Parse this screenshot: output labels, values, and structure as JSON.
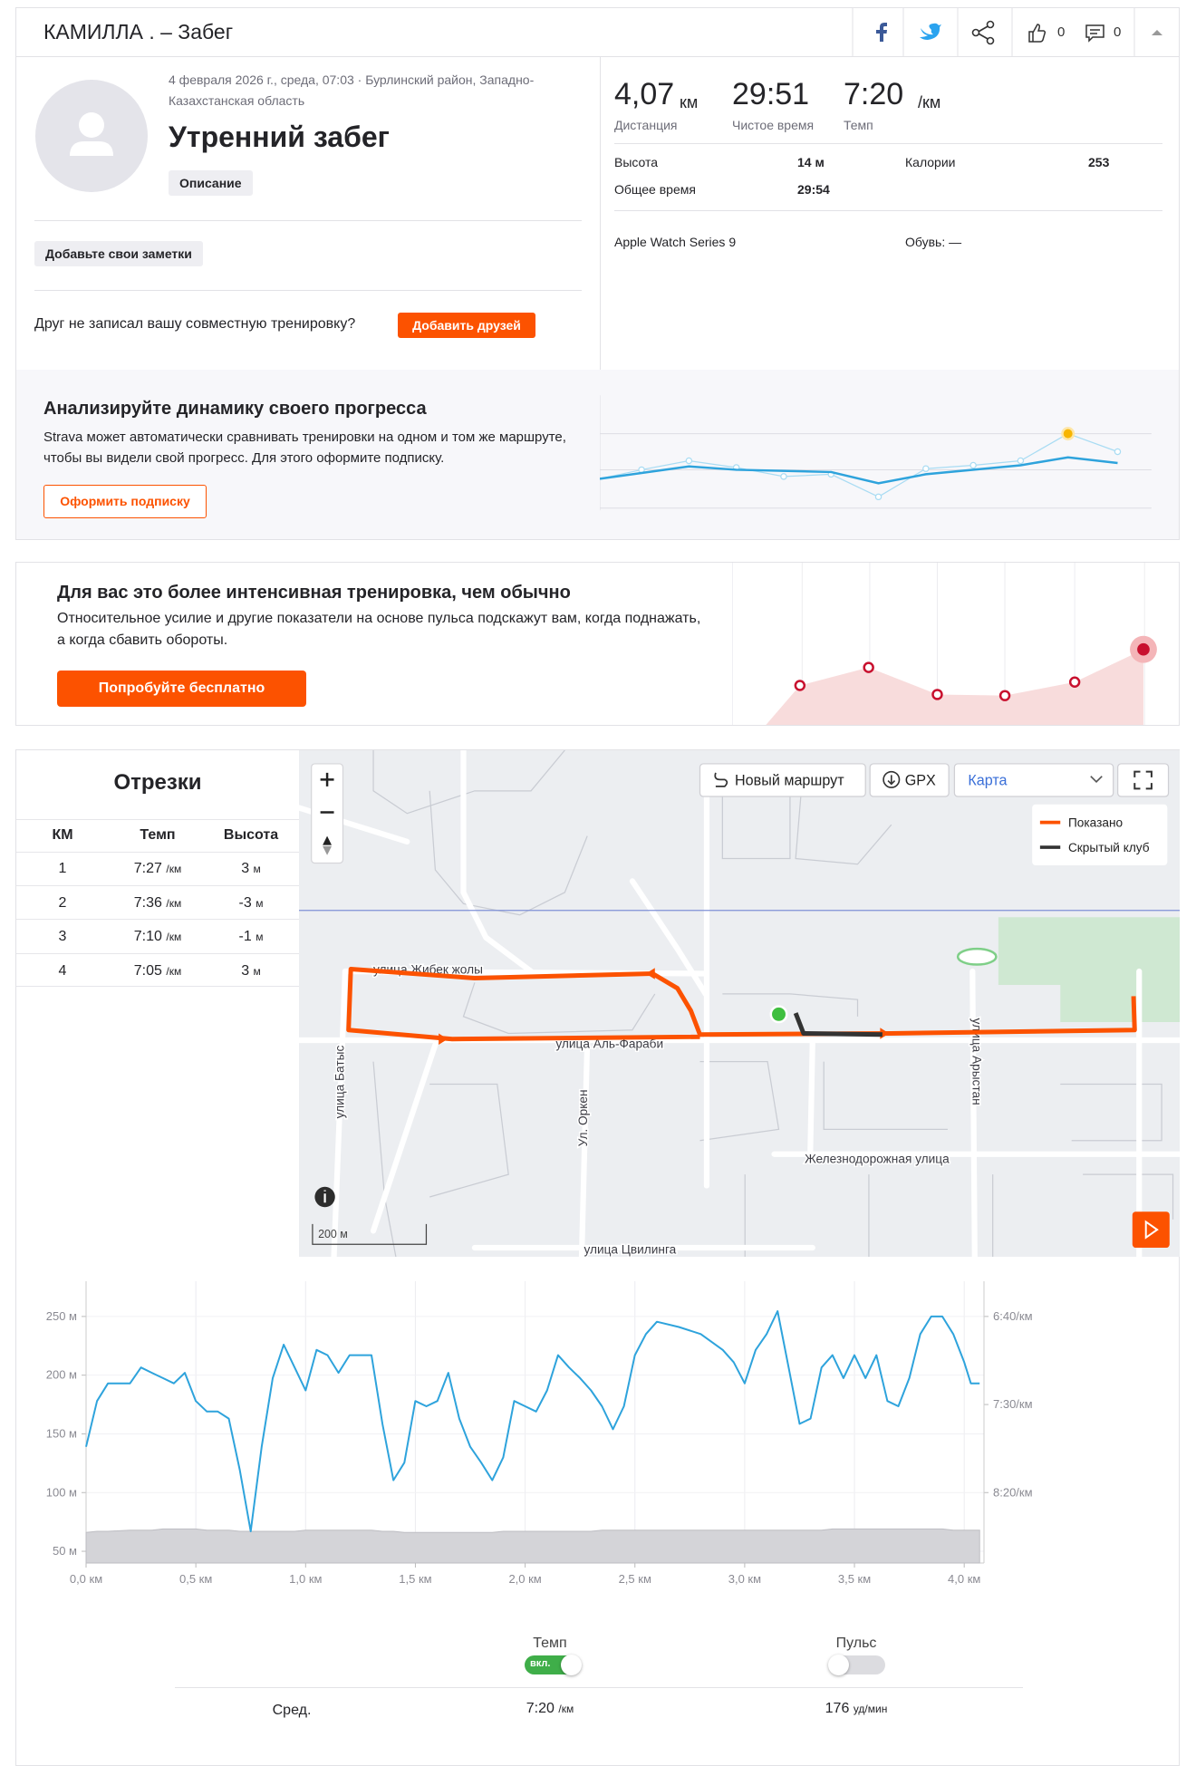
{
  "header": {
    "title": "КАМИЛЛА . – Забег",
    "likes": "0",
    "comments": "0"
  },
  "activity": {
    "date": "4 февраля 2026 г., среда, 07:03 · Бурлинский район, Западно-Казахстанская область",
    "name": "Утренний забег",
    "description_button": "Описание",
    "notes_button": "Добавьте свои заметки",
    "friend_prompt": "Друг не записал вашу совместную тренировку?",
    "add_friends_button": "Добавить друзей"
  },
  "stats": {
    "primary": [
      {
        "value": "4,07",
        "unit": "км",
        "label": "Дистанция"
      },
      {
        "value": "29:51",
        "label": "Чистое время"
      },
      {
        "value": "7:20",
        "unit": "/км",
        "label": "Темп"
      }
    ],
    "details": [
      [
        "Высота",
        "14 м"
      ],
      [
        "Калории",
        "253"
      ],
      [
        "Общее время",
        "29:54"
      ]
    ],
    "device": "Apple Watch Series 9",
    "shoes": "Обувь: —"
  },
  "promo_progress": {
    "title": "Анализируйте динамику своего прогресса",
    "text": "Strava может автоматически сравнивать тренировки на одном и том же маршруте, чтобы вы видели свой прогресс. Для этого оформите подписку.",
    "button": "Оформить подписку"
  },
  "promo_effort": {
    "title": "Для вас это более интенсивная тренировка, чем обычно",
    "text": "Относительное усилие и другие показатели на основе пульса подскажут вам, когда поднажать, а когда сбавить обороты.",
    "button": "Попробуйте бесплатно"
  },
  "splits": {
    "title": "Отрезки",
    "columns": [
      "КМ",
      "Темп",
      "Высота"
    ],
    "rows": [
      [
        "1",
        "7:27",
        "/км",
        "3",
        "м"
      ],
      [
        "2",
        "7:36",
        "/км",
        "-3",
        "м"
      ],
      [
        "3",
        "7:10",
        "/км",
        "-1",
        "м"
      ],
      [
        "4",
        "7:05",
        "/км",
        "3",
        "м"
      ]
    ]
  },
  "map": {
    "buttons": [
      "Новый маршрут",
      "GPX",
      "Карта"
    ],
    "legend": [
      "Показано",
      "Скрытый клуб"
    ],
    "streets": [
      "улица Жибек жолы",
      "улица Аль-Фараби",
      "улица Батыс",
      "Ул. Оркен",
      "улица Арыстан",
      "Железнодорожная улица",
      "улица Цвилинга"
    ],
    "scale": "200 м"
  },
  "chart_data": {
    "type": "line",
    "x": [
      0,
      0.05,
      0.1,
      0.2,
      0.25,
      0.3,
      0.35,
      0.4,
      0.45,
      0.5,
      0.55,
      0.6,
      0.65,
      0.7,
      0.75,
      0.8,
      0.85,
      0.9,
      0.95,
      1.0,
      1.05,
      1.1,
      1.15,
      1.2,
      1.3,
      1.35,
      1.4,
      1.45,
      1.5,
      1.55,
      1.6,
      1.65,
      1.7,
      1.75,
      1.8,
      1.85,
      1.9,
      1.95,
      2.0,
      2.05,
      2.1,
      2.15,
      2.2,
      2.25,
      2.3,
      2.35,
      2.4,
      2.45,
      2.5,
      2.55,
      2.6,
      2.7,
      2.8,
      2.9,
      2.95,
      3.0,
      3.05,
      3.1,
      3.15,
      3.2,
      3.25,
      3.3,
      3.35,
      3.4,
      3.45,
      3.5,
      3.55,
      3.6,
      3.65,
      3.7,
      3.75,
      3.8,
      3.85,
      3.9,
      3.95,
      4.0,
      4.03,
      4.07
    ],
    "series": [
      {
        "name": "Темп",
        "color": "#2ea3dc",
        "axis": "y2",
        "values": [
          474,
          448,
          438,
          438,
          429,
          432,
          435,
          438,
          432,
          448,
          454,
          454,
          458,
          487,
          522,
          474,
          435,
          416,
          429,
          442,
          419,
          422,
          432,
          422,
          422,
          461,
          493,
          483,
          448,
          451,
          448,
          432,
          458,
          474,
          483,
          493,
          480,
          448,
          451,
          454,
          442,
          422,
          429,
          435,
          442,
          451,
          464,
          451,
          422,
          410,
          403,
          406,
          410,
          419,
          426,
          438,
          419,
          410,
          397,
          429,
          461,
          458,
          429,
          422,
          435,
          422,
          435,
          422,
          448,
          451,
          435,
          410,
          400,
          400,
          410,
          426,
          438,
          438
        ]
      },
      {
        "color": "#d4d4d8",
        "axis": "y",
        "values": [
          66,
          67,
          67,
          68,
          68,
          68,
          69,
          69,
          69,
          69,
          68,
          68,
          68,
          67,
          67,
          67,
          67,
          67,
          67,
          68,
          68,
          68,
          68,
          68,
          68,
          67,
          67,
          66,
          66,
          66,
          66,
          66,
          66,
          66,
          66,
          66,
          67,
          67,
          67,
          67,
          67,
          67,
          67,
          67,
          67,
          68,
          68,
          68,
          68,
          68,
          68,
          68,
          68,
          68,
          68,
          68,
          68,
          68,
          68,
          68,
          68,
          68,
          68,
          69,
          69,
          69,
          69,
          69,
          69,
          69,
          69,
          69,
          69,
          69,
          68,
          68,
          68,
          68
        ]
      }
    ],
    "xlim": [
      0,
      4.09
    ],
    "xticks": [
      {
        "value": 0,
        "label": "0,0 км"
      },
      {
        "value": 0.5,
        "label": "0,5 км"
      },
      {
        "value": 1,
        "label": "1,0 км"
      },
      {
        "value": 1.5,
        "label": "1,5 км"
      },
      {
        "value": 2,
        "label": "2,0 км"
      },
      {
        "value": 2.5,
        "label": "2,5 км"
      },
      {
        "value": 3,
        "label": "3,0 км"
      },
      {
        "value": 3.5,
        "label": "3,5 км"
      },
      {
        "value": 4,
        "label": "4,0 км"
      }
    ],
    "ylim": [
      40,
      280
    ],
    "yticks": [
      {
        "value": 50,
        "label": "50 м"
      },
      {
        "value": 100,
        "label": "100 м"
      },
      {
        "value": 150,
        "label": "150 м"
      },
      {
        "value": 200,
        "label": "200 м"
      },
      {
        "value": 250,
        "label": "250 м"
      }
    ],
    "y2lim": [
      540,
      380
    ],
    "y2ticks": [
      {
        "value": 400,
        "label": "6:40/км"
      },
      {
        "value": 450,
        "label": "7:30/км"
      },
      {
        "value": 500,
        "label": "8:20/км"
      }
    ],
    "grid": true
  },
  "chart_controls": {
    "toggles": [
      {
        "label": "Пульс"
      }
    ],
    "pace_toggle_state": "вкл.",
    "averages": {
      "label": "Сред.",
      "pace": "7:20",
      "pace_unit": "/км",
      "hr": "176",
      "hr_unit": "уд/мин"
    }
  }
}
